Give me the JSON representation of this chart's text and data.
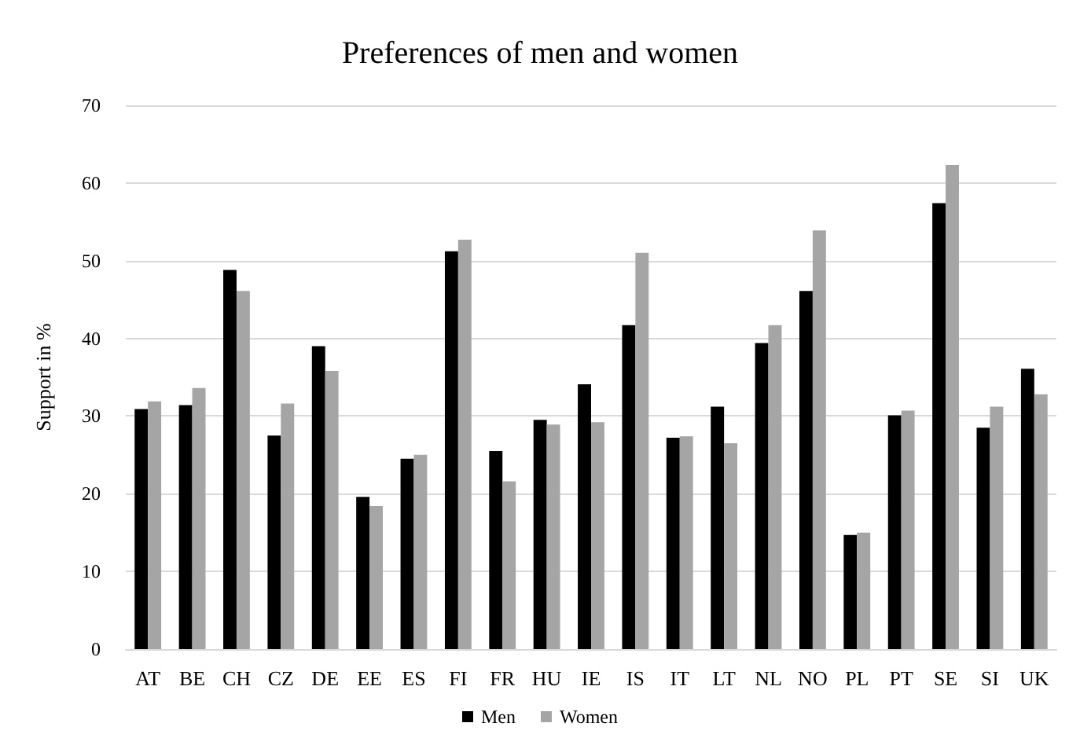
{
  "chart_data": {
    "type": "bar",
    "title": "Preferences of men and women",
    "ylabel": "Support in %",
    "categories": [
      "AT",
      "BE",
      "CH",
      "CZ",
      "DE",
      "EE",
      "ES",
      "FI",
      "FR",
      "HU",
      "IE",
      "IS",
      "IT",
      "LT",
      "NL",
      "NO",
      "PL",
      "PT",
      "SE",
      "SI",
      "UK"
    ],
    "series": [
      {
        "name": "Men",
        "color": "#000000",
        "values": [
          30.9,
          31.4,
          48.8,
          27.5,
          39.0,
          19.6,
          24.5,
          51.2,
          25.5,
          29.5,
          34.1,
          41.7,
          27.2,
          31.2,
          39.4,
          46.1,
          14.7,
          30.1,
          57.4,
          28.5,
          36.1
        ]
      },
      {
        "name": "Women",
        "color": "#a5a5a5",
        "values": [
          31.9,
          33.6,
          46.1,
          31.6,
          35.8,
          18.4,
          25.0,
          52.7,
          21.6,
          28.9,
          29.2,
          51.0,
          27.4,
          26.5,
          41.7,
          53.9,
          15.0,
          30.7,
          62.3,
          31.2,
          32.8
        ]
      }
    ],
    "ylim": [
      0,
      70
    ],
    "yticks": [
      0,
      10,
      20,
      30,
      40,
      50,
      60,
      70
    ],
    "grid": "y",
    "legend": "bottom"
  }
}
